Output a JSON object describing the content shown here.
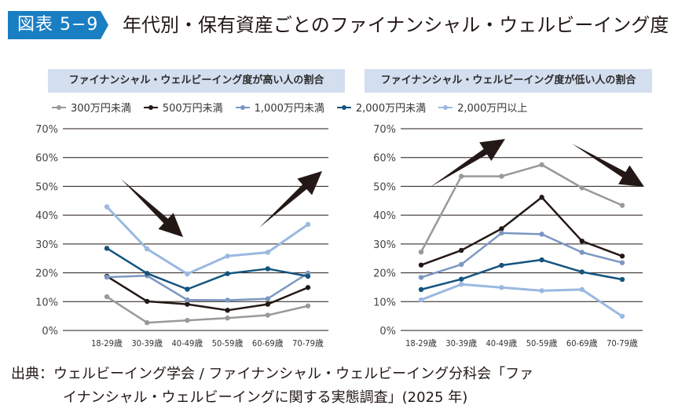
{
  "figure": {
    "badge": "図表 5−9",
    "title": "年代別・保有資産ごとのファイナンシャル・ウェルビーイング度"
  },
  "legend": [
    {
      "label": "300万円未満",
      "color": "#999999"
    },
    {
      "label": "500万円未満",
      "color": "#231815"
    },
    {
      "label": "1,000万円未満",
      "color": "#7b97c2"
    },
    {
      "label": "2,000万円未満",
      "color": "#14547e"
    },
    {
      "label": "2,000万円以上",
      "color": "#9ab8e0"
    }
  ],
  "source": {
    "line1": "出典：ウェルビーイング学会 / ファイナンシャル・ウェルビーイング分科会「ファ",
    "line2": "イナンシャル・ウェルビーイングに関する実態調査」(2025 年)"
  },
  "chart_data": [
    {
      "type": "line",
      "title": "ファイナンシャル・ウェルビーイング度が高い人の割合",
      "xlabel": "",
      "ylabel": "",
      "categories": [
        "18-29歳",
        "30-39歳",
        "40-49歳",
        "50-59歳",
        "60-69歳",
        "70-79歳"
      ],
      "yticks": [
        "0%",
        "10%",
        "20%",
        "30%",
        "40%",
        "50%",
        "60%",
        "70%"
      ],
      "ylim": [
        0,
        70
      ],
      "grid": true,
      "legend_position": "top",
      "annotations": [
        "down-arrow (decline)",
        "up-arrow (rise)"
      ],
      "series": [
        {
          "name": "300万円未満",
          "values": [
            11.7,
            2.7,
            3.5,
            4.3,
            5.3,
            8.5
          ]
        },
        {
          "name": "500万円未満",
          "values": [
            18.8,
            10.1,
            9.1,
            7.0,
            9.1,
            14.9
          ]
        },
        {
          "name": "1,000万円未満",
          "values": [
            18.5,
            19.0,
            10.6,
            10.5,
            11.0,
            19.9
          ]
        },
        {
          "name": "2,000万円未満",
          "values": [
            28.5,
            19.8,
            14.3,
            19.7,
            21.4,
            18.8
          ]
        },
        {
          "name": "2,000万円以上",
          "values": [
            42.9,
            28.3,
            19.6,
            25.8,
            27.1,
            36.8
          ]
        }
      ]
    },
    {
      "type": "line",
      "title": "ファイナンシャル・ウェルビーイング度が低い人の割合",
      "xlabel": "",
      "ylabel": "",
      "categories": [
        "18-29歳",
        "30-39歳",
        "40-49歳",
        "50-59歳",
        "60-69歳",
        "70-79歳"
      ],
      "yticks": [
        "0%",
        "10%",
        "20%",
        "30%",
        "40%",
        "50%",
        "60%",
        "70%"
      ],
      "ylim": [
        0,
        70
      ],
      "grid": true,
      "legend_position": "top",
      "annotations": [
        "up-arrow (rise)",
        "down-arrow (decline)"
      ],
      "series": [
        {
          "name": "300万円未満",
          "values": [
            27.2,
            53.5,
            53.5,
            57.5,
            49.5,
            43.4
          ]
        },
        {
          "name": "500万円未満",
          "values": [
            22.7,
            27.8,
            35.3,
            46.2,
            31.0,
            25.8
          ]
        },
        {
          "name": "1,000万円未満",
          "values": [
            18.4,
            22.9,
            33.8,
            33.4,
            27.1,
            23.5
          ]
        },
        {
          "name": "2,000万円未満",
          "values": [
            14.2,
            17.8,
            22.6,
            24.5,
            20.3,
            17.7
          ]
        },
        {
          "name": "2,000万円以上",
          "values": [
            10.6,
            16.0,
            14.9,
            13.8,
            14.2,
            4.9
          ]
        }
      ]
    }
  ]
}
